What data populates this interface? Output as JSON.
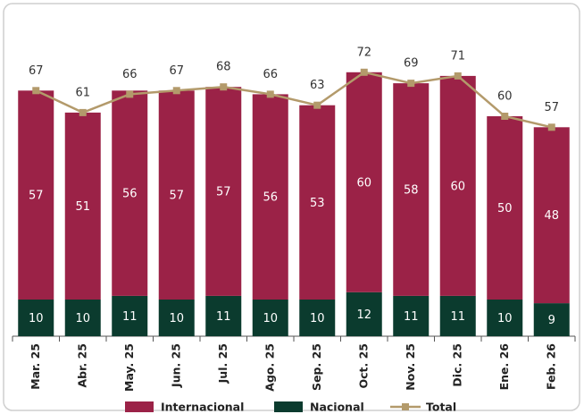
{
  "chart_data": {
    "type": "bar",
    "stacked": true,
    "categories": [
      "Mar. 25",
      "Abr. 25",
      "May. 25",
      "Jun. 25",
      "Jul. 25",
      "Ago. 25",
      "Sep. 25",
      "Oct. 25",
      "Nov. 25",
      "Dic. 25",
      "Ene. 26",
      "Feb. 26"
    ],
    "series": [
      {
        "name": "Internacional",
        "color": "#9b2247",
        "values": [
          57,
          51,
          56,
          57,
          57,
          56,
          53,
          60,
          58,
          60,
          50,
          48
        ]
      },
      {
        "name": "Nacional",
        "color": "#0b3b2e",
        "values": [
          10,
          10,
          11,
          10,
          11,
          10,
          10,
          12,
          11,
          11,
          10,
          9
        ]
      },
      {
        "name": "Total",
        "type": "line",
        "color": "#b39a6b",
        "values": [
          67,
          61,
          66,
          67,
          68,
          66,
          63,
          72,
          69,
          71,
          60,
          57
        ]
      }
    ]
  }
}
